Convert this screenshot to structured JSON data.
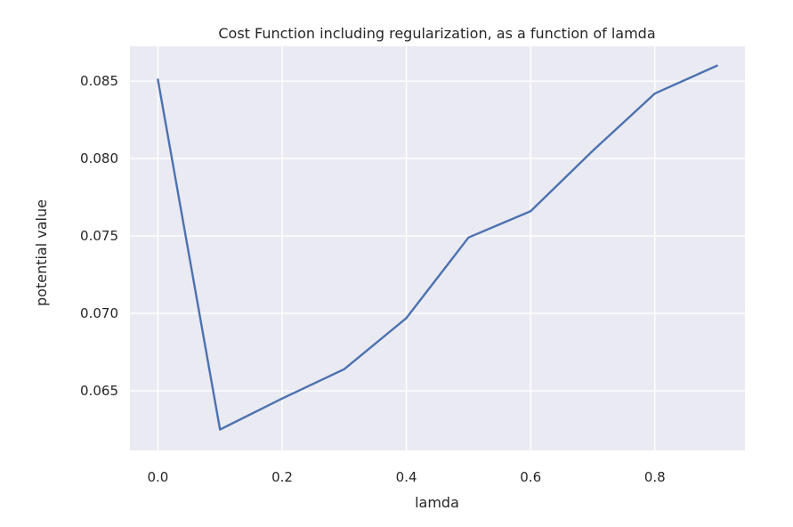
{
  "chart_data": {
    "type": "line",
    "title": "Cost Function including regularization, as a function of lamda",
    "xlabel": "lamda",
    "ylabel": "potential value",
    "xlim": [
      -0.045,
      0.945
    ],
    "ylim": [
      0.06115,
      0.08725
    ],
    "x_ticks": [
      "0.0",
      "0.2",
      "0.4",
      "0.6",
      "0.8"
    ],
    "y_ticks": [
      "0.065",
      "0.070",
      "0.075",
      "0.080",
      "0.085"
    ],
    "grid": true,
    "legend": "none",
    "series": [
      {
        "x": [
          0.0,
          0.1,
          0.2,
          0.3,
          0.4,
          0.5,
          0.6,
          0.7,
          0.8,
          0.9
        ],
        "y": [
          0.0851,
          0.0625,
          0.0645,
          0.0664,
          0.0697,
          0.0749,
          0.0766,
          0.0805,
          0.0842,
          0.086
        ],
        "color": "#4C72B0"
      }
    ],
    "colors": {
      "plot_background": "#EAEAF2",
      "grid": "#FFFFFF",
      "line": "#4C72B0"
    }
  }
}
